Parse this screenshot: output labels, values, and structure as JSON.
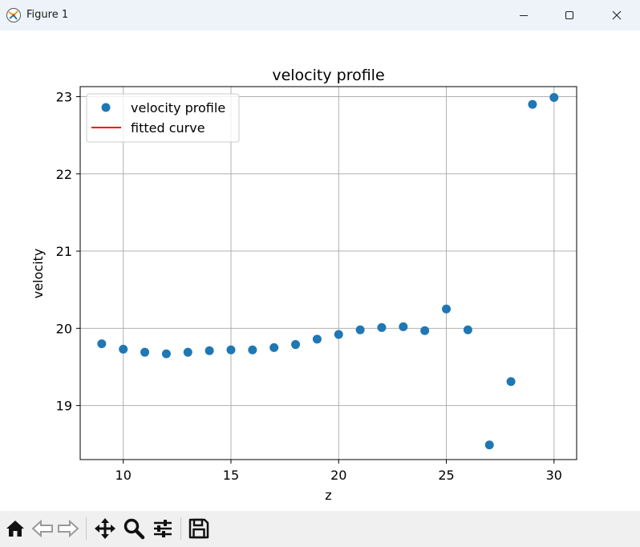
{
  "window": {
    "title": "Figure 1",
    "icons": [
      "figure-app-icon",
      "minimize-icon",
      "maximize-icon",
      "close-icon"
    ]
  },
  "toolbar": {
    "tools": [
      "home-icon",
      "back-icon",
      "forward-icon",
      "pan-icon",
      "zoom-icon",
      "configure-subplots-icon",
      "save-icon"
    ]
  },
  "chart_data": {
    "type": "scatter",
    "title": "velocity profile",
    "xlabel": "z",
    "ylabel": "velocity",
    "xlim": [
      8.0,
      31.05
    ],
    "ylim": [
      18.3,
      23.13
    ],
    "xticks": [
      10,
      15,
      20,
      25,
      30
    ],
    "yticks": [
      19,
      20,
      21,
      22,
      23
    ],
    "grid": true,
    "legend_position": "top-left",
    "series": [
      {
        "name": "velocity profile",
        "kind": "scatter",
        "color": "#1f77b4",
        "x": [
          9,
          10,
          11,
          12,
          13,
          14,
          15,
          16,
          17,
          18,
          19,
          20,
          21,
          22,
          23,
          24,
          25,
          26,
          27,
          28,
          29,
          30
        ],
        "y": [
          19.8,
          19.73,
          19.69,
          19.67,
          19.69,
          19.71,
          19.72,
          19.72,
          19.75,
          19.79,
          19.86,
          19.92,
          19.98,
          20.01,
          20.02,
          19.97,
          20.25,
          19.98,
          18.49,
          19.31,
          22.9,
          22.99
        ]
      },
      {
        "name": "fitted curve",
        "kind": "line",
        "color": "#ff0000",
        "x": [],
        "y": []
      }
    ]
  }
}
